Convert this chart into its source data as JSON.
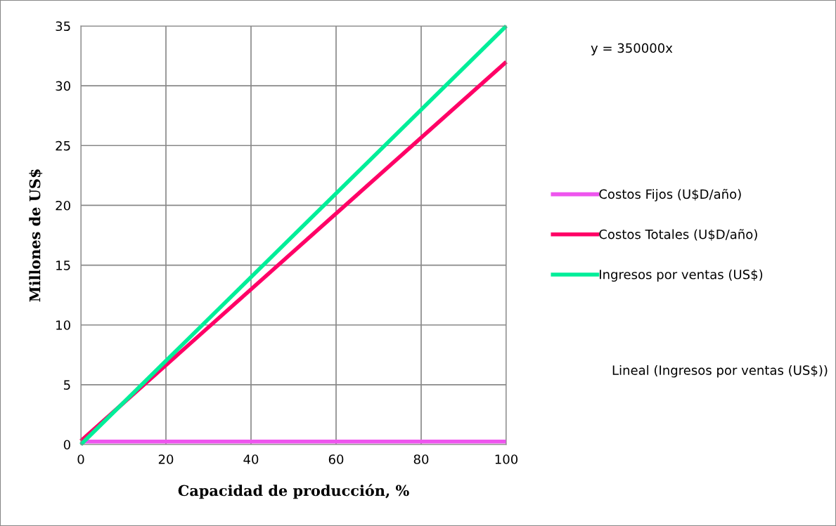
{
  "chart_data": {
    "type": "line",
    "xlabel": "Capacidad de producción, %",
    "ylabel": "Millones de US$",
    "x": [
      0,
      100
    ],
    "series": [
      {
        "name": "Costos Fijos (U$D/año)",
        "color": "#ee55ee",
        "values": [
          0.25,
          0.25
        ]
      },
      {
        "name": "Costos Totales (U$D/año)",
        "color": "#ff0066",
        "values": [
          0.3,
          32
        ]
      },
      {
        "name": "Ingresos por ventas (US$)",
        "color": "#00ee99",
        "values": [
          0,
          35
        ]
      }
    ],
    "annotations": [
      "y = 350000x",
      "Lineal (Ingresos por ventas (US$))"
    ],
    "xlim": [
      0,
      100
    ],
    "ylim": [
      0,
      35
    ],
    "xticks": [
      0,
      20,
      40,
      60,
      80,
      100
    ],
    "yticks": [
      0,
      5,
      10,
      15,
      20,
      25,
      30,
      35
    ],
    "grid": true,
    "legend": "right",
    "marker": "none",
    "line_style": "solid"
  }
}
